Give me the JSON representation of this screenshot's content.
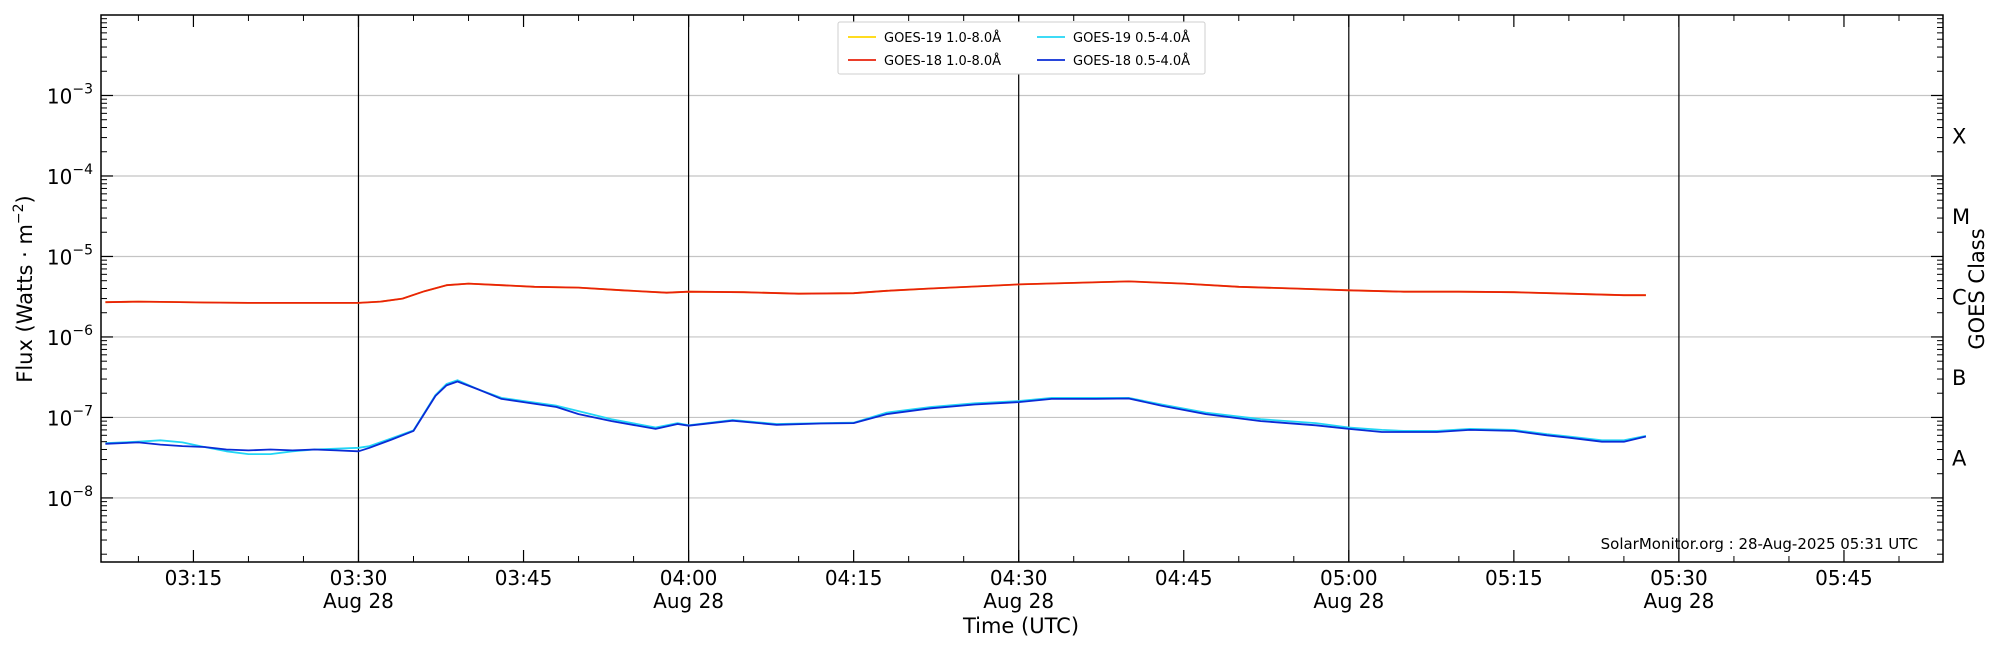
{
  "chart_data": {
    "type": "line",
    "title": "",
    "xlabel": "Time (UTC)",
    "ylabel": "Flux (Watts · m",
    "ylabel_superscript": "−2",
    "ylabel_close": ")",
    "right_label": "GOES Class",
    "y_scale": "log",
    "ylim": [
      1.6e-09,
      0.01
    ],
    "xlim": [
      "03:06.6",
      "05:54.0"
    ],
    "x_tick_labels": [
      {
        "time": "03:15",
        "date": ""
      },
      {
        "time": "03:30",
        "date": "Aug 28"
      },
      {
        "time": "03:45",
        "date": ""
      },
      {
        "time": "04:00",
        "date": "Aug 28"
      },
      {
        "time": "04:15",
        "date": ""
      },
      {
        "time": "04:30",
        "date": "Aug 28"
      },
      {
        "time": "04:45",
        "date": ""
      },
      {
        "time": "05:00",
        "date": "Aug 28"
      },
      {
        "time": "05:15",
        "date": ""
      },
      {
        "time": "05:30",
        "date": "Aug 28"
      },
      {
        "time": "05:45",
        "date": ""
      }
    ],
    "y_tick_labels": [
      {
        "base": "10",
        "exp": "−8"
      },
      {
        "base": "10",
        "exp": "−7"
      },
      {
        "base": "10",
        "exp": "−6"
      },
      {
        "base": "10",
        "exp": "−5"
      },
      {
        "base": "10",
        "exp": "−4"
      },
      {
        "base": "10",
        "exp": "−3"
      }
    ],
    "goes_classes": [
      "A",
      "B",
      "C",
      "M",
      "X"
    ],
    "grid": true,
    "vertical_markers": [
      "03:30",
      "04:00",
      "04:30",
      "05:00",
      "05:30"
    ],
    "legend_position": "top-center",
    "series": [
      {
        "name": "GOES-19 1.0-8.0Å",
        "color": "#ffd700",
        "x": [
          "03:07",
          "03:10",
          "03:13",
          "03:16",
          "03:20",
          "03:25",
          "03:30",
          "03:32",
          "03:34",
          "03:36",
          "03:38",
          "03:40",
          "03:43",
          "03:46",
          "03:50",
          "03:54",
          "03:58",
          "04:00",
          "04:05",
          "04:10",
          "04:15",
          "04:18",
          "04:22",
          "04:27",
          "04:30",
          "04:35",
          "04:40",
          "04:45",
          "04:50",
          "04:55",
          "05:00",
          "05:05",
          "05:10",
          "05:15",
          "05:20",
          "05:25",
          "05:27"
        ],
        "values": [
          2.7e-06,
          2.75e-06,
          2.72e-06,
          2.68e-06,
          2.65e-06,
          2.65e-06,
          2.65e-06,
          2.75e-06,
          3e-06,
          3.7e-06,
          4.4e-06,
          4.6e-06,
          4.4e-06,
          4.2e-06,
          4.1e-06,
          3.8e-06,
          3.55e-06,
          3.65e-06,
          3.6e-06,
          3.45e-06,
          3.5e-06,
          3.75e-06,
          4e-06,
          4.3e-06,
          4.5e-06,
          4.7e-06,
          4.9e-06,
          4.6e-06,
          4.2e-06,
          4e-06,
          3.8e-06,
          3.65e-06,
          3.65e-06,
          3.6e-06,
          3.45e-06,
          3.3e-06,
          3.3e-06
        ]
      },
      {
        "name": "GOES-18 1.0-8.0Å",
        "color": "#e8220b",
        "x": [
          "03:07",
          "03:10",
          "03:13",
          "03:16",
          "03:20",
          "03:25",
          "03:30",
          "03:32",
          "03:34",
          "03:36",
          "03:38",
          "03:40",
          "03:43",
          "03:46",
          "03:50",
          "03:54",
          "03:58",
          "04:00",
          "04:05",
          "04:10",
          "04:15",
          "04:18",
          "04:22",
          "04:27",
          "04:30",
          "04:35",
          "04:40",
          "04:45",
          "04:50",
          "04:55",
          "05:00",
          "05:05",
          "05:10",
          "05:15",
          "05:20",
          "05:25",
          "05:27"
        ],
        "values": [
          2.7e-06,
          2.75e-06,
          2.72e-06,
          2.68e-06,
          2.65e-06,
          2.65e-06,
          2.65e-06,
          2.75e-06,
          3e-06,
          3.7e-06,
          4.4e-06,
          4.6e-06,
          4.4e-06,
          4.2e-06,
          4.1e-06,
          3.8e-06,
          3.55e-06,
          3.65e-06,
          3.6e-06,
          3.45e-06,
          3.5e-06,
          3.75e-06,
          4e-06,
          4.3e-06,
          4.5e-06,
          4.7e-06,
          4.9e-06,
          4.6e-06,
          4.2e-06,
          4e-06,
          3.8e-06,
          3.65e-06,
          3.65e-06,
          3.6e-06,
          3.45e-06,
          3.3e-06,
          3.3e-06
        ]
      },
      {
        "name": "GOES-19 0.5-4.0Å",
        "color": "#22d6f5",
        "x": [
          "03:07",
          "03:10",
          "03:12",
          "03:14",
          "03:16",
          "03:18",
          "03:20",
          "03:22",
          "03:24",
          "03:26",
          "03:28",
          "03:30",
          "03:31",
          "03:33",
          "03:35",
          "03:37",
          "03:38",
          "03:39",
          "03:41",
          "03:43",
          "03:45",
          "03:48",
          "03:50",
          "03:53",
          "03:57",
          "03:59",
          "04:00",
          "04:04",
          "04:08",
          "04:12",
          "04:15",
          "04:18",
          "04:22",
          "04:26",
          "04:30",
          "04:33",
          "04:37",
          "04:40",
          "04:43",
          "04:47",
          "04:52",
          "04:57",
          "05:00",
          "05:03",
          "05:05",
          "05:08",
          "05:11",
          "05:15",
          "05:18",
          "05:20",
          "05:23",
          "05:25",
          "05:27"
        ],
        "values": [
          4.8e-08,
          5e-08,
          5.2e-08,
          4.9e-08,
          4.3e-08,
          3.8e-08,
          3.5e-08,
          3.5e-08,
          3.8e-08,
          4e-08,
          4.1e-08,
          4.2e-08,
          4.4e-08,
          5.5e-08,
          6.9e-08,
          1.9e-07,
          2.6e-07,
          2.9e-07,
          2.2e-07,
          1.75e-07,
          1.6e-07,
          1.4e-07,
          1.2e-07,
          9.5e-08,
          7.5e-08,
          8.5e-08,
          8e-08,
          9.3e-08,
          8.3e-08,
          8.5e-08,
          8.6e-08,
          1.15e-07,
          1.35e-07,
          1.5e-07,
          1.6e-07,
          1.75e-07,
          1.75e-07,
          1.75e-07,
          1.45e-07,
          1.15e-07,
          9.5e-08,
          8.5e-08,
          7.5e-08,
          7e-08,
          6.8e-08,
          6.8e-08,
          7.2e-08,
          7e-08,
          6.2e-08,
          5.8e-08,
          5.2e-08,
          5.2e-08,
          5.9e-08
        ]
      },
      {
        "name": "GOES-18 0.5-4.0Å",
        "color": "#0a2bd6",
        "x": [
          "03:07",
          "03:10",
          "03:12",
          "03:14",
          "03:16",
          "03:18",
          "03:20",
          "03:22",
          "03:24",
          "03:26",
          "03:28",
          "03:30",
          "03:31",
          "03:33",
          "03:35",
          "03:37",
          "03:38",
          "03:39",
          "03:41",
          "03:43",
          "03:45",
          "03:48",
          "03:50",
          "03:53",
          "03:57",
          "03:59",
          "04:00",
          "04:04",
          "04:08",
          "04:12",
          "04:15",
          "04:18",
          "04:22",
          "04:26",
          "04:30",
          "04:33",
          "04:37",
          "04:40",
          "04:43",
          "04:47",
          "04:52",
          "04:57",
          "05:00",
          "05:03",
          "05:05",
          "05:08",
          "05:11",
          "05:15",
          "05:18",
          "05:20",
          "05:23",
          "05:25",
          "05:27"
        ],
        "values": [
          4.7e-08,
          4.9e-08,
          4.6e-08,
          4.4e-08,
          4.3e-08,
          4e-08,
          3.9e-08,
          4e-08,
          3.9e-08,
          4e-08,
          3.9e-08,
          3.8e-08,
          4.2e-08,
          5.3e-08,
          6.8e-08,
          1.85e-07,
          2.5e-07,
          2.8e-07,
          2.2e-07,
          1.7e-07,
          1.55e-07,
          1.35e-07,
          1.1e-07,
          9e-08,
          7.2e-08,
          8.3e-08,
          7.9e-08,
          9.1e-08,
          8.1e-08,
          8.4e-08,
          8.5e-08,
          1.1e-07,
          1.3e-07,
          1.45e-07,
          1.55e-07,
          1.7e-07,
          1.7e-07,
          1.72e-07,
          1.4e-07,
          1.1e-07,
          9e-08,
          8e-08,
          7.2e-08,
          6.6e-08,
          6.6e-08,
          6.6e-08,
          7e-08,
          6.8e-08,
          6e-08,
          5.6e-08,
          5e-08,
          5e-08,
          5.8e-08
        ]
      }
    ]
  },
  "credit": "SolarMonitor.org : 28-Aug-2025 05:31 UTC"
}
